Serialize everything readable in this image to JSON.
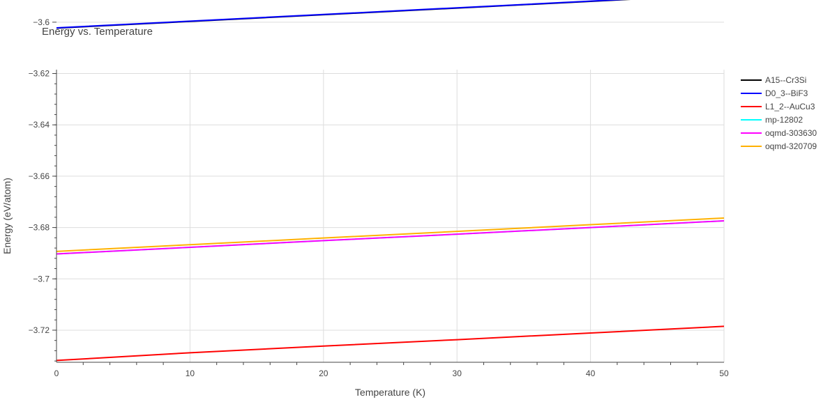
{
  "chart_data": {
    "type": "line",
    "title": "Energy vs. Temperature",
    "xlabel": "Temperature (K)",
    "ylabel": "Energy (eV/atom)",
    "xlim": [
      0,
      50
    ],
    "ylim": [
      -3.7325,
      -3.6185
    ],
    "x_ticks": [
      0,
      10,
      20,
      30,
      40,
      50
    ],
    "y_ticks": [
      -3.6,
      -3.62,
      -3.64,
      -3.66,
      -3.68,
      -3.7,
      -3.72
    ],
    "y_tick_labels": [
      "−3.6",
      "−3.62",
      "−3.64",
      "−3.66",
      "−3.68",
      "−3.7",
      "−3.72"
    ],
    "grid": true,
    "legend_position": "top-right",
    "series": [
      {
        "name": "A15--Cr3Si",
        "color": "#000000",
        "x": [
          0,
          10,
          20,
          30,
          40,
          50
        ],
        "y": [
          -3.6023,
          -3.5997,
          -3.5971,
          -3.5945,
          -3.5919,
          -3.5892
        ]
      },
      {
        "name": "D0_3--BiF3",
        "color": "#0000ff",
        "x": [
          0,
          10,
          20,
          30,
          40,
          50
        ],
        "y": [
          -3.6022,
          -3.5996,
          -3.597,
          -3.5944,
          -3.5918,
          -3.5891
        ]
      },
      {
        "name": "L1_2--AuCu3",
        "color": "#ff0000",
        "x": [
          0,
          10,
          20,
          30,
          40,
          50
        ],
        "y": [
          -3.7318,
          -3.7288,
          -3.7262,
          -3.7237,
          -3.7211,
          -3.7185
        ]
      },
      {
        "name": "mp-12802",
        "color": "#00ffff",
        "x": [
          0,
          10,
          20,
          30,
          40,
          50
        ],
        "y": [
          -3.6903,
          -3.6877,
          -3.6851,
          -3.6826,
          -3.68,
          -3.6774
        ]
      },
      {
        "name": "oqmd-303630",
        "color": "#ff00ff",
        "x": [
          0,
          10,
          20,
          30,
          40,
          50
        ],
        "y": [
          -3.6903,
          -3.6877,
          -3.6851,
          -3.6826,
          -3.68,
          -3.6774
        ]
      },
      {
        "name": "oqmd-320709",
        "color": "#ffb000",
        "x": [
          0,
          10,
          20,
          30,
          40,
          50
        ],
        "y": [
          -3.6893,
          -3.6867,
          -3.6841,
          -3.6815,
          -3.6789,
          -3.6763
        ]
      }
    ]
  }
}
